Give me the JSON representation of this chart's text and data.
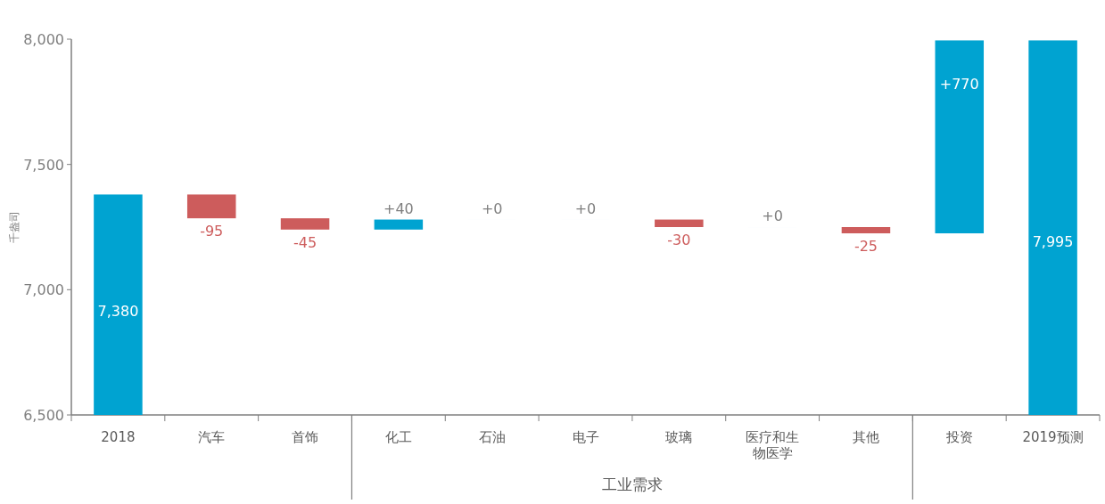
{
  "chart_data": {
    "type": "bar",
    "ylabel": "千盎司",
    "categories": [
      "2018",
      "汽车",
      "首饰",
      "化工",
      "石油",
      "电子",
      "玻璃",
      "医疗和生物医学",
      "其他",
      "投资",
      "2019预测"
    ],
    "values": [
      7380,
      -95,
      -45,
      40,
      0,
      0,
      -30,
      0,
      -25,
      770,
      7995
    ],
    "base": [
      null,
      7380,
      7285,
      7240,
      7280,
      7280,
      7280,
      7250,
      7250,
      7225,
      null
    ],
    "colors": [
      "#00a3d1",
      "#cd5c5c",
      "#cd5c5c",
      "#00a3d1",
      "#00a3d1",
      "#00a3d1",
      "#cd5c5c",
      "#00a3d1",
      "#cd5c5c",
      "#00a3d1",
      "#00a3d1"
    ],
    "value_labels": [
      "7,380",
      "-95",
      "-45",
      "+40",
      "+0",
      "+0",
      "-30",
      "+0",
      "-25",
      "+770",
      "7,995"
    ],
    "ylim": [
      6500,
      8000
    ],
    "yticks": [
      {
        "value": 6500,
        "label": "6,500"
      },
      {
        "value": 7000,
        "label": "7,000"
      },
      {
        "value": 7500,
        "label": "7,500"
      },
      {
        "value": 8000,
        "label": "8,000"
      }
    ],
    "annotations": [
      "工业需求"
    ]
  }
}
